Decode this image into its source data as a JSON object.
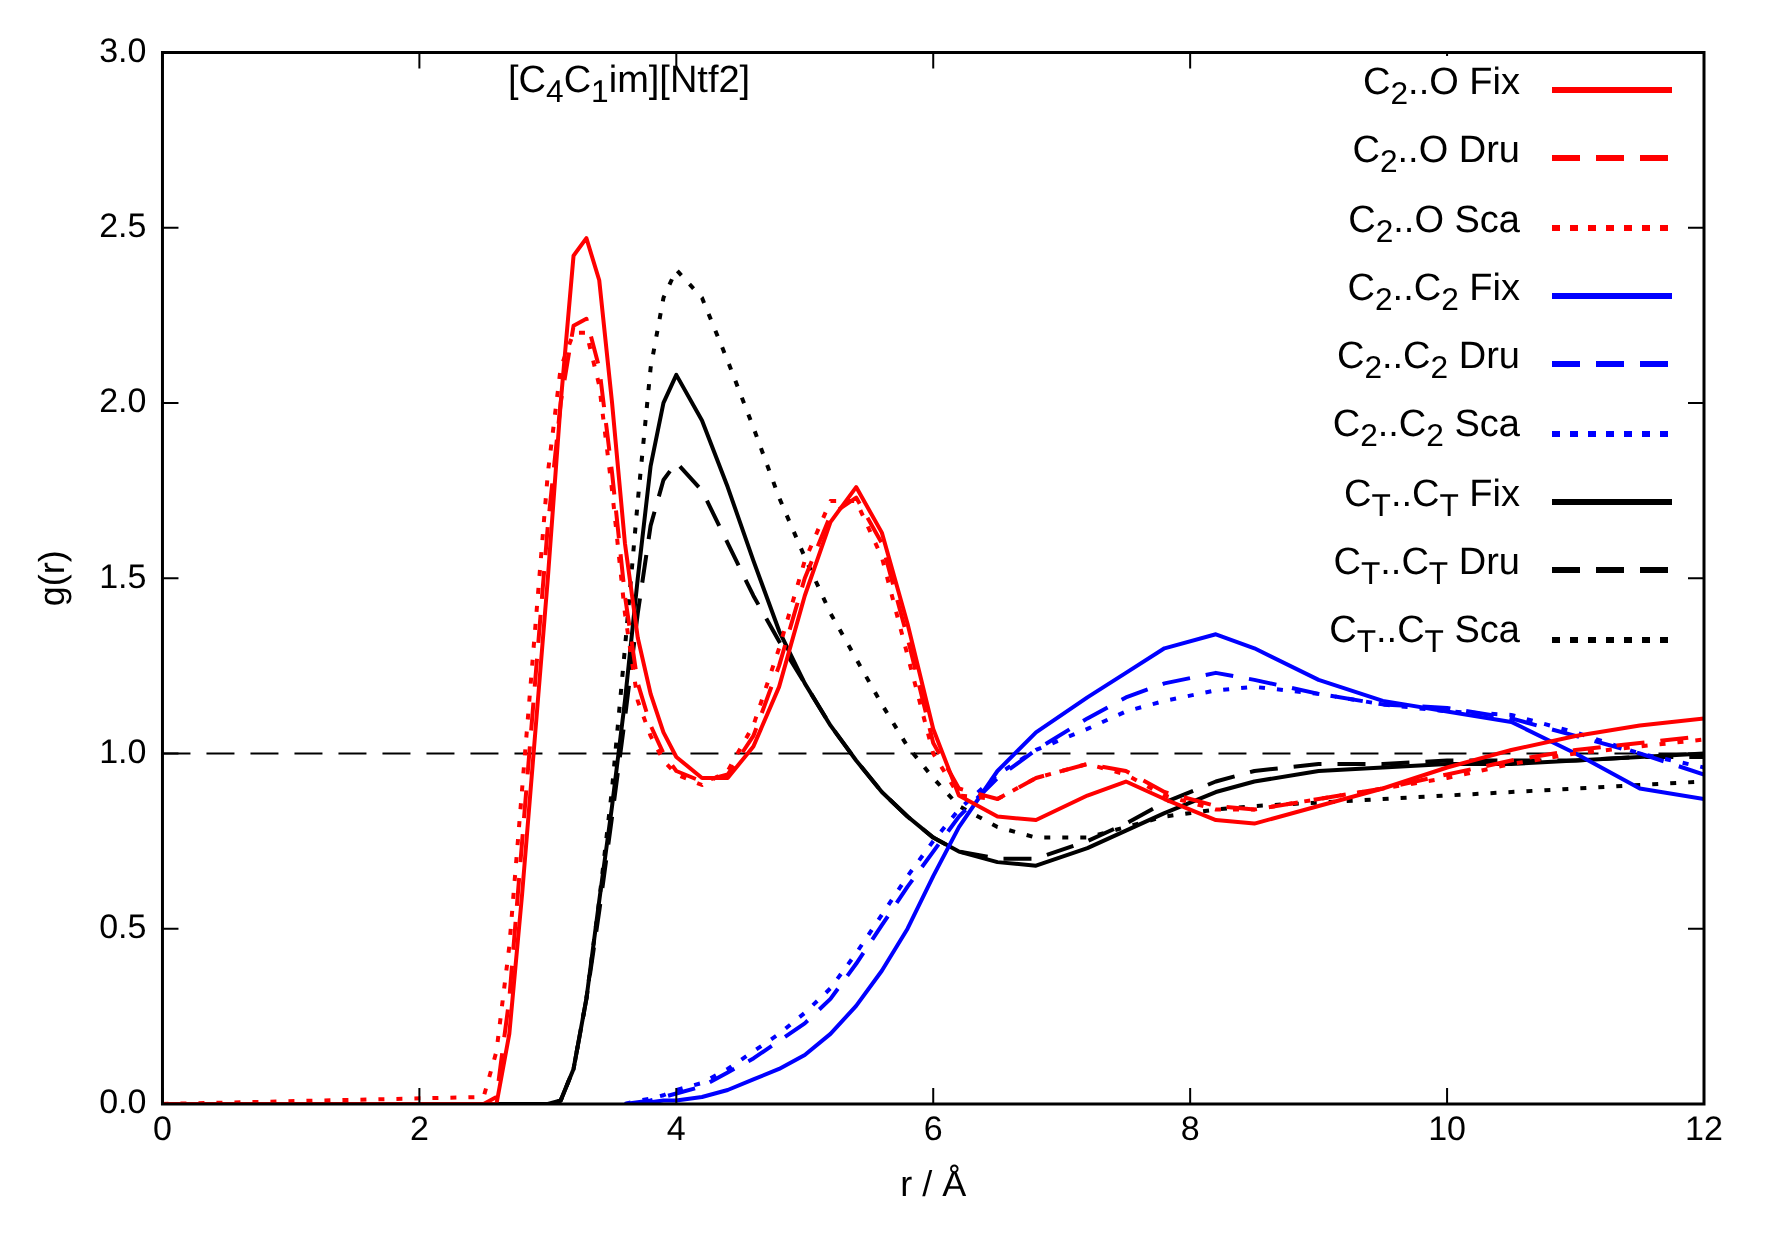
{
  "chart_data": {
    "type": "line",
    "annotations": [
      "[C$_{4}$C$_{1}$im][Ntf2]"
    ],
    "xlabel": "r / Å",
    "ylabel": "g(r)",
    "x": [
      0,
      2.5,
      2.6,
      2.7,
      2.8,
      2.9,
      3.0,
      3.1,
      3.2,
      3.3,
      3.4,
      3.5,
      3.6,
      3.7,
      3.8,
      3.9,
      4.0,
      4.2,
      4.4,
      4.6,
      4.8,
      5.0,
      5.2,
      5.4,
      5.6,
      5.8,
      6.0,
      6.2,
      6.5,
      6.8,
      7.2,
      7.5,
      7.8,
      8.2,
      8.5,
      9.0,
      9.5,
      10,
      10.5,
      11,
      11.5,
      12
    ],
    "series": [
      {
        "name": "C$_{2}$..O Fix",
        "color": "#ff0000",
        "line_style": "solid",
        "values": [
          0,
          0,
          0,
          0.2,
          0.6,
          1.05,
          1.5,
          2.0,
          2.42,
          2.47,
          2.35,
          2.0,
          1.6,
          1.33,
          1.17,
          1.06,
          0.99,
          0.93,
          0.93,
          1.02,
          1.19,
          1.45,
          1.66,
          1.76,
          1.63,
          1.37,
          1.07,
          0.88,
          0.82,
          0.81,
          0.88,
          0.92,
          0.87,
          0.81,
          0.8,
          0.85,
          0.9,
          0.96,
          1.01,
          1.05,
          1.08,
          1.1
        ]
      },
      {
        "name": "C$_{2}$..O Dru",
        "color": "#ff0000",
        "line_style": "dashed",
        "values": [
          0,
          0,
          0.02,
          0.3,
          0.75,
          1.2,
          1.65,
          2.0,
          2.22,
          2.24,
          2.1,
          1.8,
          1.45,
          1.2,
          1.08,
          1.0,
          0.95,
          0.92,
          0.94,
          1.05,
          1.25,
          1.5,
          1.68,
          1.73,
          1.6,
          1.33,
          1.03,
          0.9,
          0.87,
          0.93,
          0.97,
          0.95,
          0.89,
          0.85,
          0.84,
          0.87,
          0.9,
          0.94,
          0.98,
          1.01,
          1.03,
          1.05
        ]
      },
      {
        "name": "C$_{2}$..O Sca",
        "color": "#ff0000",
        "line_style": "dotted",
        "values": [
          0,
          0.02,
          0.15,
          0.45,
          0.9,
          1.35,
          1.8,
          2.1,
          2.2,
          2.2,
          2.05,
          1.75,
          1.4,
          1.15,
          1.05,
          0.98,
          0.94,
          0.91,
          0.95,
          1.08,
          1.3,
          1.55,
          1.72,
          1.72,
          1.56,
          1.28,
          1.0,
          0.88,
          0.87,
          0.93,
          0.97,
          0.94,
          0.88,
          0.84,
          0.84,
          0.87,
          0.9,
          0.93,
          0.97,
          1.0,
          1.02,
          1.04
        ]
      },
      {
        "name": "C$_{2}$..C$_{2}$ Fix",
        "color": "#0000ff",
        "line_style": "solid",
        "values": [
          null,
          null,
          null,
          null,
          null,
          null,
          null,
          null,
          null,
          null,
          null,
          null,
          0,
          0,
          0.005,
          0.01,
          0.01,
          0.02,
          0.04,
          0.07,
          0.1,
          0.14,
          0.2,
          0.28,
          0.38,
          0.5,
          0.65,
          0.79,
          0.95,
          1.06,
          1.16,
          1.23,
          1.3,
          1.34,
          1.3,
          1.21,
          1.15,
          1.12,
          1.09,
          1.0,
          0.9,
          0.87
        ]
      },
      {
        "name": "C$_{2}$..C$_{2}$ Dru",
        "color": "#0000ff",
        "line_style": "dashed",
        "values": [
          null,
          null,
          null,
          null,
          null,
          null,
          null,
          null,
          null,
          null,
          null,
          null,
          0,
          0.005,
          0.01,
          0.02,
          0.03,
          0.05,
          0.09,
          0.13,
          0.18,
          0.23,
          0.3,
          0.4,
          0.51,
          0.62,
          0.72,
          0.82,
          0.93,
          1.01,
          1.1,
          1.16,
          1.2,
          1.23,
          1.21,
          1.17,
          1.14,
          1.13,
          1.1,
          1.05,
          1.0,
          0.94
        ]
      },
      {
        "name": "C$_{2}$..C$_{2}$ Sca",
        "color": "#0000ff",
        "line_style": "dotted",
        "values": [
          null,
          null,
          null,
          null,
          null,
          null,
          null,
          null,
          null,
          null,
          null,
          null,
          0,
          0.01,
          0.015,
          0.025,
          0.04,
          0.06,
          0.1,
          0.15,
          0.2,
          0.26,
          0.33,
          0.43,
          0.54,
          0.65,
          0.75,
          0.84,
          0.94,
          1.01,
          1.07,
          1.12,
          1.15,
          1.18,
          1.19,
          1.17,
          1.14,
          1.12,
          1.11,
          1.06,
          1.0,
          0.96
        ]
      },
      {
        "name": "C$_{T}$..C$_{T}$ Fix",
        "color": "#000000",
        "line_style": "solid",
        "values": [
          0,
          0,
          0,
          0,
          0,
          0,
          0,
          0.01,
          0.1,
          0.3,
          0.58,
          0.85,
          1.15,
          1.5,
          1.82,
          2.0,
          2.08,
          1.95,
          1.76,
          1.55,
          1.35,
          1.2,
          1.08,
          0.98,
          0.89,
          0.82,
          0.76,
          0.72,
          0.69,
          0.68,
          0.73,
          0.78,
          0.83,
          0.89,
          0.92,
          0.95,
          0.96,
          0.97,
          0.97,
          0.98,
          0.99,
          1.0
        ]
      },
      {
        "name": "C$_{T}$..C$_{T}$ Dru",
        "color": "#000000",
        "line_style": "dashed",
        "values": [
          0,
          0,
          0,
          0,
          0,
          0,
          0,
          0.01,
          0.1,
          0.3,
          0.55,
          0.82,
          1.1,
          1.4,
          1.65,
          1.78,
          1.83,
          1.75,
          1.6,
          1.45,
          1.32,
          1.2,
          1.08,
          0.98,
          0.89,
          0.82,
          0.76,
          0.72,
          0.7,
          0.7,
          0.75,
          0.8,
          0.86,
          0.92,
          0.95,
          0.97,
          0.97,
          0.98,
          0.98,
          0.98,
          0.99,
          0.99
        ]
      },
      {
        "name": "C$_{T}$..C$_{T}$ Sca",
        "color": "#000000",
        "line_style": "dotted",
        "values": [
          0,
          0,
          0,
          0,
          0,
          0,
          0,
          0.01,
          0.1,
          0.3,
          0.58,
          0.9,
          1.3,
          1.72,
          2.1,
          2.3,
          2.38,
          2.3,
          2.12,
          1.93,
          1.73,
          1.56,
          1.4,
          1.27,
          1.14,
          1.02,
          0.93,
          0.85,
          0.79,
          0.76,
          0.76,
          0.79,
          0.82,
          0.84,
          0.85,
          0.86,
          0.87,
          0.88,
          0.89,
          0.9,
          0.91,
          0.92
        ]
      }
    ],
    "xlim": [
      0,
      12
    ],
    "xticks": [
      0,
      2,
      4,
      6,
      8,
      10,
      12
    ],
    "ylim": [
      0,
      3
    ],
    "yticks": [
      {
        "value": 0,
        "label": "0.0"
      },
      {
        "value": 0.5,
        "label": "0.5"
      },
      {
        "value": 1,
        "label": "1.0"
      },
      {
        "value": 1.5,
        "label": "1.5"
      },
      {
        "value": 2,
        "label": "2.0"
      },
      {
        "value": 2.5,
        "label": "2.5"
      },
      {
        "value": 3,
        "label": "3.0"
      }
    ],
    "ref_lines": [
      {
        "axis": "y",
        "value": 1,
        "color": "#000000",
        "line_style": "dashed"
      }
    ],
    "legend": "top right",
    "marker": "none",
    "grid": false
  }
}
